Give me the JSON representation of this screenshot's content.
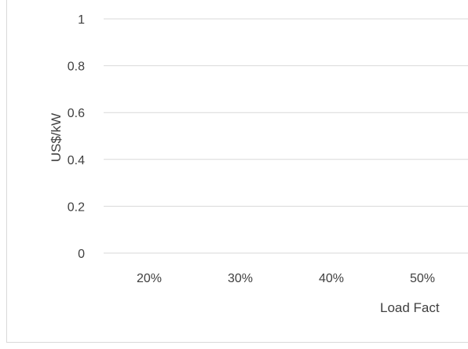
{
  "chart_data": {
    "type": "line",
    "categories": [
      "20%",
      "30%",
      "40%",
      "50%"
    ],
    "series": [],
    "ylabel": "US$/kW",
    "xlabel": "Load Fact",
    "yticks": [
      "0",
      "0.2",
      "0.4",
      "0.6",
      "0.8",
      "1"
    ],
    "ylim": [
      0,
      1
    ],
    "grid": true,
    "legend": "none"
  },
  "colors": {
    "grid": "#d9d9d9",
    "text": "#404040"
  }
}
